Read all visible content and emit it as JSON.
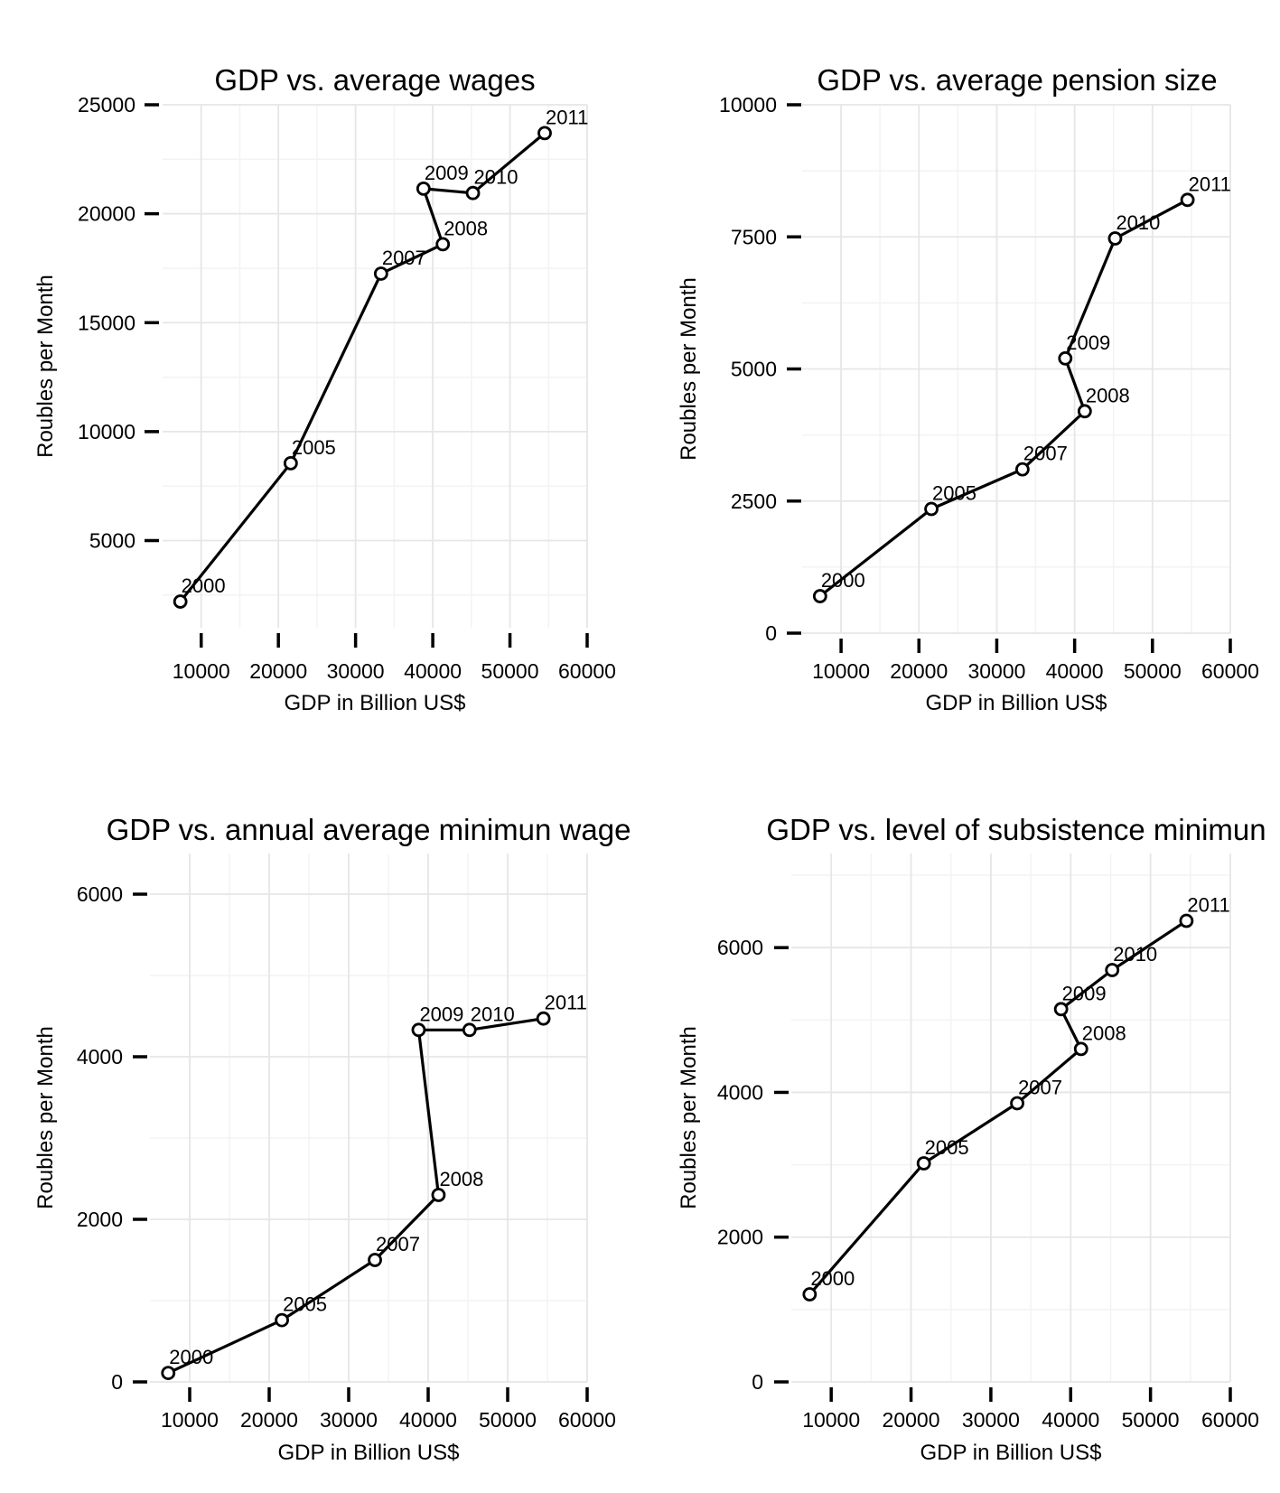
{
  "chart_data": [
    {
      "type": "line",
      "title": "GDP vs. average wages",
      "xlabel": "GDP in Billion US$",
      "ylabel": "Roubles per Month",
      "xlim": [
        5000,
        60000
      ],
      "ylim": [
        1000,
        25000
      ],
      "xticks": [
        10000,
        20000,
        30000,
        40000,
        50000,
        60000
      ],
      "yticks": [
        5000,
        10000,
        15000,
        20000,
        25000
      ],
      "grid": true,
      "series": [
        {
          "points": [
            {
              "label": "2000",
              "x": 7300,
              "y": 2200
            },
            {
              "label": "2005",
              "x": 21600,
              "y": 8550
            },
            {
              "label": "2007",
              "x": 33300,
              "y": 17250
            },
            {
              "label": "2008",
              "x": 41300,
              "y": 18600
            },
            {
              "label": "2009",
              "x": 38800,
              "y": 21150
            },
            {
              "label": "2010",
              "x": 45200,
              "y": 20950
            },
            {
              "label": "2011",
              "x": 54500,
              "y": 23700
            }
          ]
        }
      ]
    },
    {
      "type": "line",
      "title": "GDP vs. average pension size",
      "xlabel": "GDP in Billion US$",
      "ylabel": "Roubles per Month",
      "xlim": [
        5000,
        60000
      ],
      "ylim": [
        0,
        10000
      ],
      "xticks": [
        10000,
        20000,
        30000,
        40000,
        50000,
        60000
      ],
      "yticks": [
        0,
        2500,
        5000,
        7500,
        10000
      ],
      "grid": true,
      "series": [
        {
          "points": [
            {
              "label": "2000",
              "x": 7300,
              "y": 700
            },
            {
              "label": "2005",
              "x": 21600,
              "y": 2350
            },
            {
              "label": "2007",
              "x": 33300,
              "y": 3100
            },
            {
              "label": "2008",
              "x": 41300,
              "y": 4200
            },
            {
              "label": "2009",
              "x": 38800,
              "y": 5200
            },
            {
              "label": "2010",
              "x": 45200,
              "y": 7470
            },
            {
              "label": "2011",
              "x": 54500,
              "y": 8200
            }
          ]
        }
      ]
    },
    {
      "type": "line",
      "title": "GDP vs. annual average minimun wage",
      "xlabel": "GDP in Billion US$",
      "ylabel": "Roubles per Month",
      "xlim": [
        5000,
        60000
      ],
      "ylim": [
        0,
        6500
      ],
      "xticks": [
        10000,
        20000,
        30000,
        40000,
        50000,
        60000
      ],
      "yticks": [
        0,
        2000,
        4000,
        6000
      ],
      "grid": true,
      "series": [
        {
          "points": [
            {
              "label": "2000",
              "x": 7300,
              "y": 110
            },
            {
              "label": "2005",
              "x": 21600,
              "y": 760
            },
            {
              "label": "2007",
              "x": 33300,
              "y": 1500
            },
            {
              "label": "2008",
              "x": 41300,
              "y": 2300
            },
            {
              "label": "2009",
              "x": 38800,
              "y": 4330
            },
            {
              "label": "2010",
              "x": 45200,
              "y": 4330
            },
            {
              "label": "2011",
              "x": 54500,
              "y": 4470
            }
          ]
        }
      ]
    },
    {
      "type": "line",
      "title": "GDP vs. level of subsistence minimun",
      "xlabel": "GDP in Billion US$",
      "ylabel": "Roubles per Month",
      "xlim": [
        5000,
        60000
      ],
      "ylim": [
        0,
        7300
      ],
      "xticks": [
        10000,
        20000,
        30000,
        40000,
        50000,
        60000
      ],
      "yticks": [
        0,
        2000,
        4000,
        6000
      ],
      "grid": true,
      "series": [
        {
          "points": [
            {
              "label": "2000",
              "x": 7300,
              "y": 1210
            },
            {
              "label": "2005",
              "x": 21600,
              "y": 3020
            },
            {
              "label": "2007",
              "x": 33300,
              "y": 3850
            },
            {
              "label": "2008",
              "x": 41300,
              "y": 4600
            },
            {
              "label": "2009",
              "x": 38800,
              "y": 5150
            },
            {
              "label": "2010",
              "x": 45200,
              "y": 5690
            },
            {
              "label": "2011",
              "x": 54500,
              "y": 6370
            }
          ]
        }
      ]
    }
  ]
}
